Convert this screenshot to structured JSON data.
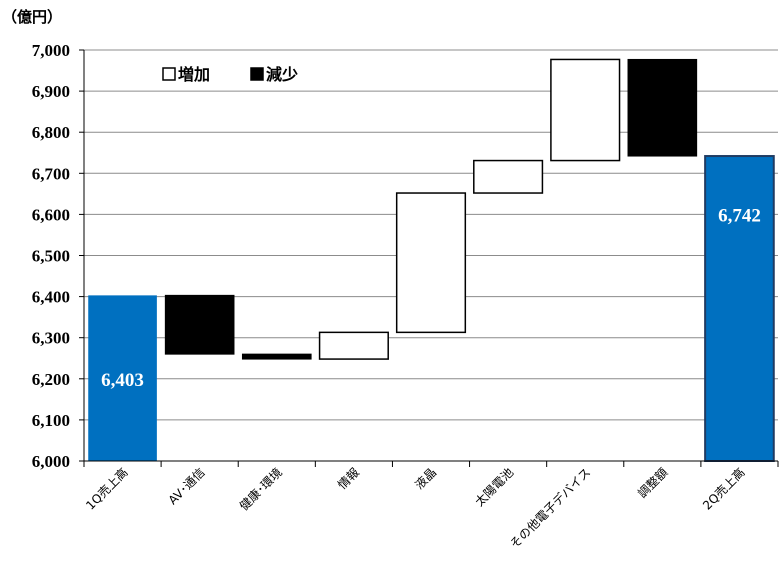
{
  "chart_data": {
    "type": "bar",
    "subtype": "waterfall",
    "unit_label": "（億円）",
    "categories": [
      "1Q売上高",
      "AV･通信",
      "健康･環境",
      "情報",
      "液晶",
      "太陽電池",
      "その他電子デバイス",
      "調整額",
      "2Q売上高"
    ],
    "bars": [
      {
        "kind": "total",
        "start": 6000,
        "end": 6403,
        "label": "6,403"
      },
      {
        "kind": "decrease",
        "start": 6403,
        "end": 6260,
        "label": ""
      },
      {
        "kind": "decrease",
        "start": 6260,
        "end": 6248,
        "label": ""
      },
      {
        "kind": "increase",
        "start": 6248,
        "end": 6313,
        "label": ""
      },
      {
        "kind": "increase",
        "start": 6313,
        "end": 6652,
        "label": ""
      },
      {
        "kind": "increase",
        "start": 6652,
        "end": 6731,
        "label": ""
      },
      {
        "kind": "increase",
        "start": 6731,
        "end": 6977,
        "label": ""
      },
      {
        "kind": "decrease",
        "start": 6977,
        "end": 6742,
        "label": ""
      },
      {
        "kind": "total",
        "start": 6000,
        "end": 6742,
        "label": "6,742"
      }
    ],
    "ylim": [
      6000,
      7000
    ],
    "yticks": [
      "6,000",
      "6,100",
      "6,200",
      "6,300",
      "6,400",
      "6,500",
      "6,600",
      "6,700",
      "6,800",
      "6,900",
      "7,000"
    ],
    "ytick_values": [
      6000,
      6100,
      6200,
      6300,
      6400,
      6500,
      6600,
      6700,
      6800,
      6900,
      7000
    ],
    "legend": {
      "items": [
        {
          "label": "増加",
          "color": "#ffffff"
        },
        {
          "label": "減少",
          "color": "#000000"
        }
      ],
      "position": "top-left"
    },
    "grid": true,
    "colors": {
      "total": "#0070c0",
      "increase": "#ffffff",
      "decrease": "#000000",
      "border": "#000000"
    }
  }
}
